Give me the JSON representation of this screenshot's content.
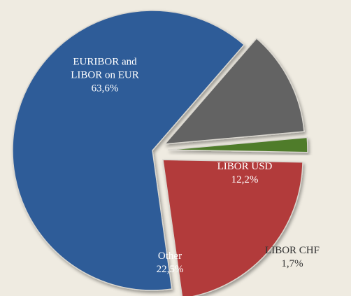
{
  "chart_data": {
    "type": "pie",
    "categories": [
      "EURIBOR and LIBOR on EUR",
      "LIBOR USD",
      "LIBOR CHF",
      "Other"
    ],
    "values": [
      63.6,
      12.2,
      1.7,
      22.5
    ],
    "value_labels": [
      "63,6%",
      "12,2%",
      "1,7%",
      "22,5%"
    ],
    "colors": [
      "#2d5b98",
      "#646464",
      "#4f7b2b",
      "#b23b3b"
    ]
  }
}
